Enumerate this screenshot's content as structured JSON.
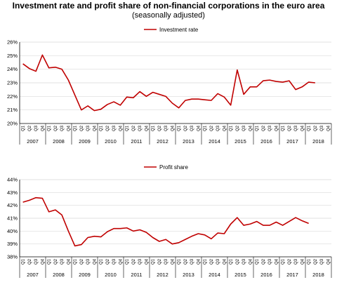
{
  "title": "Investment rate and profit share of non-financial corporations in the euro area",
  "subtitle": "(seasonally adjusted)",
  "colors": {
    "series": "#c00000",
    "grid": "#d9d9d9",
    "axis": "#000000"
  },
  "chart_data": [
    {
      "type": "line",
      "legend": "top-center",
      "grid": true,
      "quarter_labels": [
        "Q1",
        "Q2",
        "Q3",
        "Q4"
      ],
      "years": [
        "2007",
        "2008",
        "2009",
        "2010",
        "2011",
        "2012",
        "2013",
        "2014",
        "2015",
        "2016",
        "2017",
        "2018"
      ],
      "ylim": [
        20,
        26
      ],
      "yticks": [
        "20%",
        "21%",
        "22%",
        "23%",
        "24%",
        "25%",
        "26%"
      ],
      "series": [
        {
          "name": "Investment rate",
          "values": [
            24.4,
            24.05,
            23.85,
            25.05,
            24.1,
            24.15,
            24.0,
            23.2,
            22.1,
            21.0,
            21.3,
            20.95,
            21.05,
            21.4,
            21.6,
            21.35,
            21.95,
            21.9,
            22.35,
            22.0,
            22.3,
            22.15,
            22.0,
            21.5,
            21.15,
            21.7,
            21.8,
            21.8,
            21.75,
            21.7,
            22.2,
            21.95,
            21.35,
            23.95,
            22.15,
            22.7,
            22.7,
            23.15,
            23.2,
            23.1,
            23.05,
            23.15,
            22.5,
            22.7,
            23.05,
            23.0
          ]
        }
      ]
    },
    {
      "type": "line",
      "legend": "top-center",
      "grid": true,
      "quarter_labels": [
        "Q1",
        "Q2",
        "Q3",
        "Q4"
      ],
      "years": [
        "2007",
        "2008",
        "2009",
        "2010",
        "2011",
        "2012",
        "2013",
        "2014",
        "2015",
        "2016",
        "2017",
        "2018"
      ],
      "ylim": [
        38,
        44
      ],
      "yticks": [
        "38%",
        "39%",
        "40%",
        "41%",
        "42%",
        "43%",
        "44%"
      ],
      "series": [
        {
          "name": "Profit share",
          "values": [
            42.25,
            42.4,
            42.6,
            42.55,
            41.5,
            41.65,
            41.25,
            40.0,
            38.85,
            38.95,
            39.5,
            39.6,
            39.55,
            39.95,
            40.2,
            40.2,
            40.25,
            40.0,
            40.1,
            39.9,
            39.5,
            39.2,
            39.35,
            39.0,
            39.1,
            39.35,
            39.6,
            39.8,
            39.7,
            39.4,
            39.85,
            39.8,
            40.55,
            41.05,
            40.45,
            40.55,
            40.75,
            40.45,
            40.45,
            40.7,
            40.45,
            40.75,
            41.05,
            40.8,
            40.6
          ]
        }
      ]
    }
  ]
}
